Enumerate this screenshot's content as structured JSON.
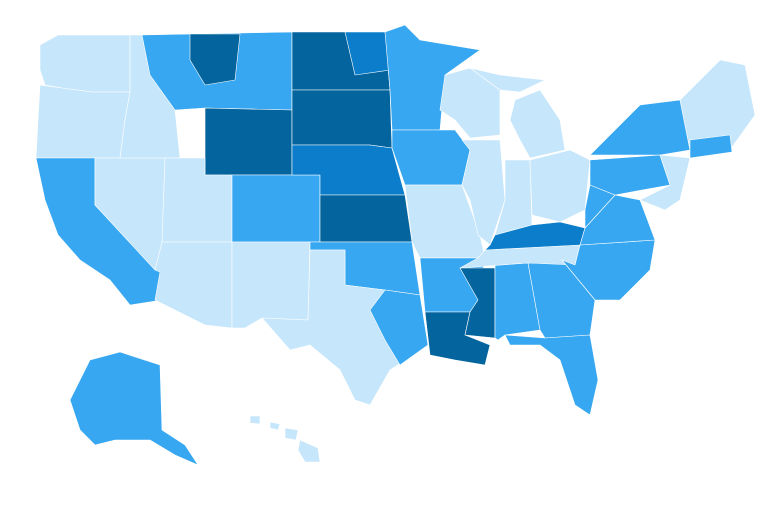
{
  "map": {
    "palette": [
      "#c6e6fb",
      "#37a7f1",
      "#0b7dcb",
      "#04649d"
    ]
  }
}
